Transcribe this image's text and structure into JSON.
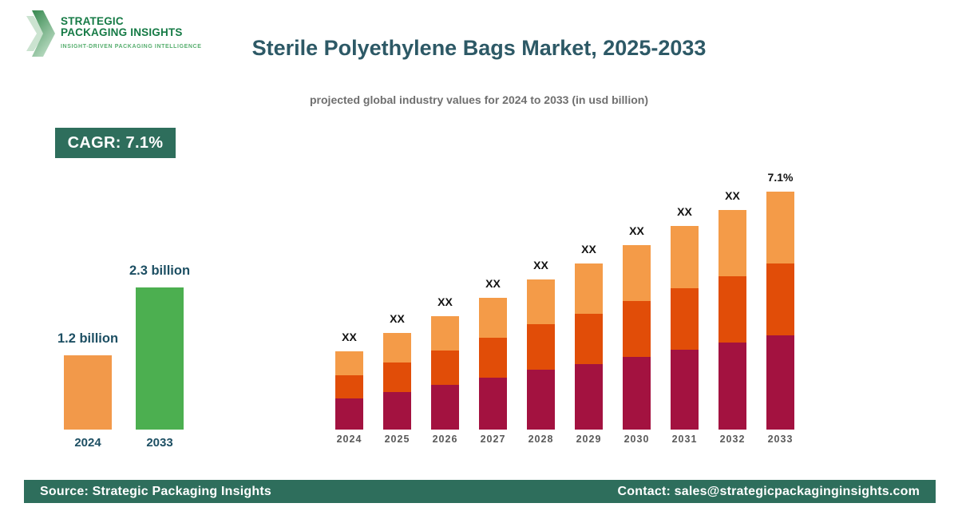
{
  "brand": {
    "name_line1": "STRATEGIC",
    "name_line2": "PACKAGING INSIGHTS",
    "tagline": "INSIGHT-DRIVEN PACKAGING INTELLIGENCE"
  },
  "header": {
    "title": "Sterile Polyethylene Bags Market, 2025-2033",
    "subtitle": "projected global industry values for 2024 to 2033 (in usd billion)"
  },
  "cagr_badge": {
    "label": "CAGR: 7.1%"
  },
  "footer": {
    "source": "Source: Strategic Packaging Insights",
    "contact": "Contact: sales@strategicpackaginginsights.com"
  },
  "colors": {
    "accent_green": "#2E6E5C",
    "title_teal": "#2D5966",
    "label_teal": "#1D4F63",
    "brand_green": "#157A45",
    "tagline_green": "#56AE6E",
    "subtitle_gray": "#6F6F6F",
    "axis_year_gray": "#595959",
    "bar_label_black": "#111111",
    "stack_bottom_maroon": "#A31240",
    "stack_middle_dark_orange": "#E14D08",
    "stack_top_light_orange": "#F49B48",
    "mini_bar_orange": "#F2994A",
    "mini_bar_green": "#4CAF50"
  },
  "chart_data": [
    {
      "type": "bar",
      "name": "market-size-comparison",
      "title": "",
      "categories": [
        "2024",
        "2033"
      ],
      "values": [
        1.2,
        2.3
      ],
      "value_labels": [
        "1.2 billion",
        "2.3 billion"
      ],
      "bar_colors": [
        "#F2994A",
        "#4CAF50"
      ],
      "unit": "usd billion",
      "ylim": [
        0,
        2.3
      ],
      "grid": "off",
      "legend": "none"
    },
    {
      "type": "bar",
      "name": "projected-values-stacked",
      "stacked": true,
      "categories": [
        "2024",
        "2025",
        "2026",
        "2027",
        "2028",
        "2029",
        "2030",
        "2031",
        "2032",
        "2033"
      ],
      "series": [
        {
          "name": "segment-bottom",
          "color": "#A31240",
          "values": [
            39,
            47,
            56,
            65,
            75,
            82,
            91,
            100,
            109,
            118
          ]
        },
        {
          "name": "segment-middle",
          "color": "#E14D08",
          "values": [
            29,
            37,
            43,
            50,
            57,
            63,
            70,
            77,
            83,
            90
          ]
        },
        {
          "name": "segment-top",
          "color": "#F49B48",
          "values": [
            30,
            37,
            43,
            50,
            56,
            63,
            70,
            78,
            83,
            90
          ]
        }
      ],
      "values_unit": "relative height units (numeric values masked as XX on chart)",
      "bar_top_labels": [
        "XX",
        "XX",
        "XX",
        "XX",
        "XX",
        "XX",
        "XX",
        "XX",
        "XX",
        "7.1%"
      ],
      "grid": "off",
      "legend": "none"
    }
  ]
}
